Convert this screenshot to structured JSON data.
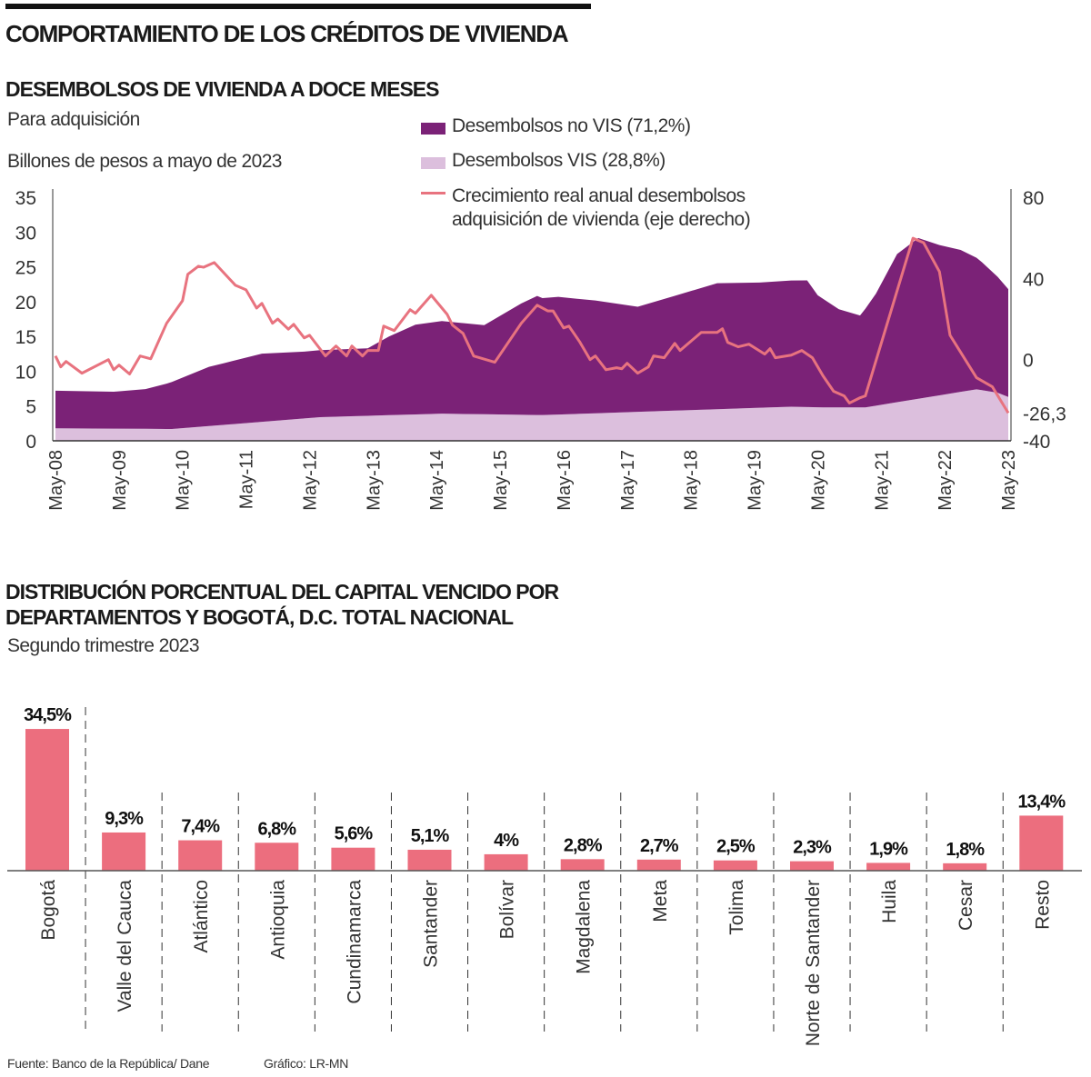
{
  "header": {
    "title": "COMPORTAMIENTO DE LOS CRÉDITOS DE VIVIENDA"
  },
  "footer": {
    "source": "Fuente: Banco de la República/ Dane",
    "credit": "Gráfico: LR-MN"
  },
  "colors": {
    "no_vis": "#7b2277",
    "vis": "#dcbfdd",
    "growth_line": "#e8737f",
    "bars": "#ec6e7e"
  },
  "chart_data": [
    {
      "type": "area",
      "stacked": true,
      "title": "DESEMBOLSOS DE VIVIENDA A DOCE MESES",
      "subtitle": "Para adquisición",
      "units": "Billones de pesos a mayo de 2023",
      "ylim": [
        0,
        35
      ],
      "y_ticks": [
        "35",
        "30",
        "25",
        "20",
        "15",
        "10",
        "5",
        "0"
      ],
      "y2lim": [
        -40,
        80
      ],
      "y2_ticks": [
        "80",
        "40",
        "0",
        "-26,3",
        "-40"
      ],
      "x_ticks": [
        "May-08",
        "May-09",
        "May-10",
        "May-11",
        "May-12",
        "May-13",
        "May-14",
        "May-15",
        "May-16",
        "May-17",
        "May-18",
        "May-19",
        "May-20",
        "May-21",
        "May-22",
        "May-23"
      ],
      "grid": false,
      "legend_position": "top-right",
      "series": [
        {
          "name": "Desembolsos no VIS (71,2%)",
          "kind": "area",
          "axis": "left",
          "x": [
            "2008-05",
            "2009-04",
            "2009-10",
            "2010-02",
            "2010-10",
            "2011-08",
            "2012-04",
            "2013-04",
            "2013-08",
            "2014-01",
            "2014-06",
            "2015-02",
            "2015-09",
            "2015-12",
            "2016-01",
            "2016-04",
            "2016-11",
            "2017-07",
            "2018-02",
            "2018-10",
            "2019-06",
            "2020-03",
            "2020-05",
            "2020-09",
            "2021-01",
            "2021-04",
            "2021-08",
            "2021-12",
            "2022-04",
            "2022-08",
            "2022-12",
            "2023-05"
          ],
          "values": [
            5.4,
            5.3,
            5.7,
            6.5,
            8.5,
            9.8,
            9.6,
            9.7,
            11.3,
            12.9,
            13.3,
            12.8,
            16.0,
            17.1,
            16.8,
            16.9,
            16.2,
            15.1,
            16.5,
            18.1,
            18.0,
            18.2,
            16.1,
            14.1,
            13.2,
            16.1,
            21.3,
            23.1,
            21.6,
            20.4,
            18.4,
            15.5
          ]
        },
        {
          "name": "Desembolsos VIS (28,8%)",
          "kind": "area",
          "axis": "left",
          "x": [
            "2008-05",
            "2010-03",
            "2011-01",
            "2012-07",
            "2014-06",
            "2016-01",
            "2019-12",
            "2020-06",
            "2021-02",
            "2022-11",
            "2023-03",
            "2023-05"
          ],
          "values": [
            1.8,
            1.7,
            2.3,
            3.4,
            3.9,
            3.7,
            4.9,
            4.8,
            4.8,
            7.4,
            6.9,
            6.3
          ]
        },
        {
          "name": "Crecimiento real anual desembolsos adquisición de vivienda (eje derecho)",
          "kind": "line",
          "axis": "right",
          "x": [
            "2008-05",
            "2008-06",
            "2008-07",
            "2008-10",
            "2009-03",
            "2009-04",
            "2009-05",
            "2009-07",
            "2009-09",
            "2009-11",
            "2010-02",
            "2010-05",
            "2010-06",
            "2010-08",
            "2010-09",
            "2010-11",
            "2011-03",
            "2011-05",
            "2011-07",
            "2011-08",
            "2011-10",
            "2011-11",
            "2012-01",
            "2012-02",
            "2012-04",
            "2012-05",
            "2012-08",
            "2012-10",
            "2012-12",
            "2013-01",
            "2013-03",
            "2013-04",
            "2013-06",
            "2013-07",
            "2013-09",
            "2013-12",
            "2014-01",
            "2014-04",
            "2014-07",
            "2014-08",
            "2014-10",
            "2014-12",
            "2015-04",
            "2015-09",
            "2015-12",
            "2016-02",
            "2016-03",
            "2016-05",
            "2016-06",
            "2016-08",
            "2016-10",
            "2016-11",
            "2017-01",
            "2017-03",
            "2017-04",
            "2017-05",
            "2017-07",
            "2017-09",
            "2017-10",
            "2017-12",
            "2018-02",
            "2018-03",
            "2018-07",
            "2018-10",
            "2018-11",
            "2018-12",
            "2019-02",
            "2019-04",
            "2019-07",
            "2019-08",
            "2019-09",
            "2019-12",
            "2020-02",
            "2020-04",
            "2020-06",
            "2020-08",
            "2020-10",
            "2020-11",
            "2021-01",
            "2021-02",
            "2021-11",
            "2022-01",
            "2022-04",
            "2022-06",
            "2022-11",
            "2023-02",
            "2023-05"
          ],
          "values": [
            1.8,
            -3.6,
            -0.9,
            -6.7,
            0,
            -5,
            -2.7,
            -7.1,
            1.8,
            0.4,
            17.9,
            29,
            42,
            46,
            45.5,
            47.8,
            36.6,
            34.4,
            25.4,
            27.7,
            17.9,
            20,
            15,
            17.4,
            10.7,
            12,
            1.8,
            6.7,
            1.8,
            6.7,
            1.8,
            4.5,
            4.5,
            16.5,
            14.3,
            24.6,
            22.8,
            31.7,
            22.3,
            17,
            12.9,
            1.8,
            -1.3,
            17.9,
            26.8,
            24,
            24,
            15.6,
            16.5,
            8.9,
            0,
            1.8,
            -5,
            -4,
            -4.5,
            -1.8,
            -6.7,
            -3.6,
            1.8,
            0.9,
            8,
            4.5,
            13.4,
            13.4,
            15.2,
            8.5,
            6.3,
            7.6,
            2.7,
            5.4,
            0.9,
            2.2,
            4.5,
            0.9,
            -8,
            -15.6,
            -17.9,
            -21.4,
            -18.8,
            -17.9,
            59.8,
            57.6,
            43.3,
            12,
            -8.9,
            -13.4,
            -26.3
          ]
        }
      ]
    },
    {
      "type": "bar",
      "title": "DISTRIBUCIÓN PORCENTUAL DEL CAPITAL VENCIDO POR DEPARTAMENTOS Y BOGOTÁ, D.C. TOTAL NACIONAL",
      "title_lines": [
        "DISTRIBUCIÓN PORCENTUAL DEL CAPITAL VENCIDO POR",
        "DEPARTAMENTOS Y BOGOTÁ, D.C. TOTAL NACIONAL"
      ],
      "subtitle": "Segundo trimestre 2023",
      "categories": [
        "Bogotá",
        "Valle del Cauca",
        "Atlántico",
        "Antioquia",
        "Cundinamarca",
        "Santander",
        "Bolívar",
        "Magdalena",
        "Meta",
        "Tolima",
        "Norte de Santander",
        "Huila",
        "Cesar",
        "Resto"
      ],
      "values": [
        34.5,
        9.3,
        7.4,
        6.8,
        5.6,
        5.1,
        4,
        2.8,
        2.7,
        2.5,
        2.3,
        1.9,
        1.8,
        13.4
      ],
      "data_labels": [
        "34,5%",
        "9,3%",
        "7,4%",
        "6,8%",
        "5,6%",
        "5,1%",
        "4%",
        "2,8%",
        "2,7%",
        "2,5%",
        "2,3%",
        "1,9%",
        "1,8%",
        "13,4%"
      ],
      "grid": false
    }
  ]
}
